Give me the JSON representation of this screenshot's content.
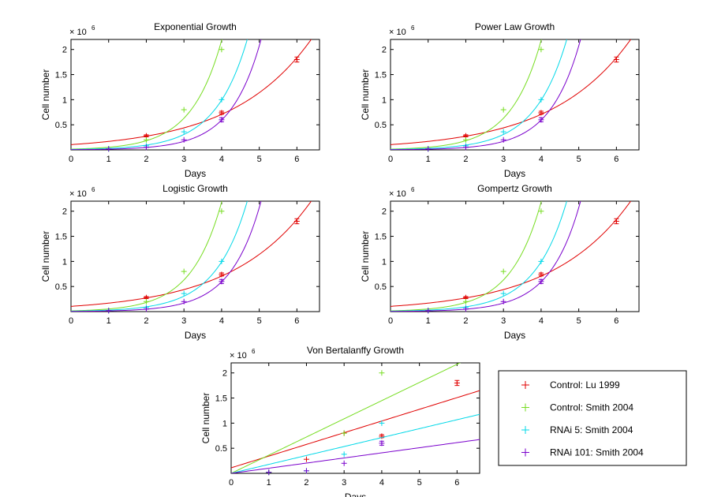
{
  "legend": {
    "entries": [
      {
        "label": "Control: Lu 1999",
        "color": "#e00000"
      },
      {
        "label": "Control: Smith 2004",
        "color": "#77dd22"
      },
      {
        "label": "RNAi 5: Smith 2004",
        "color": "#00d8e8"
      },
      {
        "label": "RNAi 101: Smith 2004",
        "color": "#7a00cc"
      }
    ]
  },
  "chart_data": [
    {
      "type": "scatter",
      "title": "Exponential Growth",
      "xlabel": "Days",
      "ylabel": "Cell number",
      "multiplier_base": "× 10",
      "multiplier_exp": "6",
      "xlim": [
        0,
        6.6
      ],
      "ylim": [
        0,
        2.2
      ],
      "xticks": [
        0,
        1,
        2,
        3,
        4,
        5,
        6
      ],
      "yticks": [
        0.5,
        1,
        1.5,
        2
      ],
      "series": [
        {
          "name": "Control: Lu 1999",
          "x": [
            2,
            4,
            6
          ],
          "y": [
            0.28,
            0.74,
            1.8
          ],
          "err": [
            0.02,
            0.03,
            0.05
          ],
          "fit": {
            "model": "exp",
            "a": 0.105,
            "r": 0.4769
          }
        },
        {
          "name": "Control: Smith 2004",
          "x": [
            1,
            2,
            3,
            4
          ],
          "y": [
            0.02,
            0.2,
            0.8,
            2.0
          ],
          "fit": {
            "model": "exp",
            "a": 0.0153,
            "r": 1.24
          }
        },
        {
          "name": "RNAi 5: Smith 2004",
          "x": [
            1,
            2,
            3,
            4
          ],
          "y": [
            0.02,
            0.08,
            0.36,
            1.0
          ],
          "fit": {
            "model": "exp",
            "a": 0.0092,
            "r": 1.17
          }
        },
        {
          "name": "RNAi 101: Smith 2004",
          "x": [
            1,
            2,
            3,
            4
          ],
          "y": [
            0.02,
            0.05,
            0.2,
            0.6
          ],
          "err": [
            0,
            0,
            0,
            0.04
          ],
          "fit": {
            "model": "exp",
            "a": 0.004,
            "r": 1.25
          }
        }
      ]
    },
    {
      "type": "scatter",
      "title": "Power Law Growth",
      "xlabel": "Days",
      "ylabel": "Cell number",
      "multiplier_base": "× 10",
      "multiplier_exp": "6",
      "xlim": [
        0,
        6.6
      ],
      "ylim": [
        0,
        2.2
      ],
      "xticks": [
        0,
        1,
        2,
        3,
        4,
        5,
        6
      ],
      "yticks": [
        0.5,
        1,
        1.5,
        2
      ],
      "series": [
        {
          "name": "Control: Lu 1999",
          "x": [
            2,
            4,
            6
          ],
          "y": [
            0.28,
            0.74,
            1.8
          ],
          "err": [
            0.02,
            0.03,
            0.05
          ],
          "fit": {
            "model": "exp",
            "a": 0.105,
            "r": 0.4769
          }
        },
        {
          "name": "Control: Smith 2004",
          "x": [
            1,
            2,
            3,
            4
          ],
          "y": [
            0.02,
            0.2,
            0.8,
            2.0
          ],
          "fit": {
            "model": "exp",
            "a": 0.0153,
            "r": 1.24
          }
        },
        {
          "name": "RNAi 5: Smith 2004",
          "x": [
            1,
            2,
            3,
            4
          ],
          "y": [
            0.02,
            0.08,
            0.36,
            1.0
          ],
          "fit": {
            "model": "exp",
            "a": 0.0092,
            "r": 1.17
          }
        },
        {
          "name": "RNAi 101: Smith 2004",
          "x": [
            1,
            2,
            3,
            4
          ],
          "y": [
            0.02,
            0.05,
            0.2,
            0.6
          ],
          "err": [
            0,
            0,
            0,
            0.04
          ],
          "fit": {
            "model": "exp",
            "a": 0.004,
            "r": 1.25
          }
        }
      ]
    },
    {
      "type": "scatter",
      "title": "Logistic Growth",
      "xlabel": "Days",
      "ylabel": "Cell number",
      "multiplier_base": "× 10",
      "multiplier_exp": "6",
      "xlim": [
        0,
        6.6
      ],
      "ylim": [
        0,
        2.2
      ],
      "xticks": [
        0,
        1,
        2,
        3,
        4,
        5,
        6
      ],
      "yticks": [
        0.5,
        1,
        1.5,
        2
      ],
      "series": [
        {
          "name": "Control: Lu 1999",
          "x": [
            2,
            4,
            6
          ],
          "y": [
            0.28,
            0.74,
            1.8
          ],
          "err": [
            0.02,
            0.03,
            0.05
          ],
          "fit": {
            "model": "exp",
            "a": 0.105,
            "r": 0.4769
          }
        },
        {
          "name": "Control: Smith 2004",
          "x": [
            1,
            2,
            3,
            4
          ],
          "y": [
            0.02,
            0.2,
            0.8,
            2.0
          ],
          "fit": {
            "model": "exp",
            "a": 0.0153,
            "r": 1.24
          }
        },
        {
          "name": "RNAi 5: Smith 2004",
          "x": [
            1,
            2,
            3,
            4
          ],
          "y": [
            0.02,
            0.08,
            0.36,
            1.0
          ],
          "fit": {
            "model": "exp",
            "a": 0.0092,
            "r": 1.17
          }
        },
        {
          "name": "RNAi 101: Smith 2004",
          "x": [
            1,
            2,
            3,
            4
          ],
          "y": [
            0.02,
            0.05,
            0.2,
            0.6
          ],
          "err": [
            0,
            0,
            0,
            0.04
          ],
          "fit": {
            "model": "exp",
            "a": 0.004,
            "r": 1.25
          }
        }
      ]
    },
    {
      "type": "scatter",
      "title": "Gompertz Growth",
      "xlabel": "Days",
      "ylabel": "Cell number",
      "multiplier_base": "× 10",
      "multiplier_exp": "6",
      "xlim": [
        0,
        6.6
      ],
      "ylim": [
        0,
        2.2
      ],
      "xticks": [
        0,
        1,
        2,
        3,
        4,
        5,
        6
      ],
      "yticks": [
        0.5,
        1,
        1.5,
        2
      ],
      "series": [
        {
          "name": "Control: Lu 1999",
          "x": [
            2,
            4,
            6
          ],
          "y": [
            0.28,
            0.74,
            1.8
          ],
          "err": [
            0.02,
            0.03,
            0.05
          ],
          "fit": {
            "model": "exp",
            "a": 0.105,
            "r": 0.4769
          }
        },
        {
          "name": "Control: Smith 2004",
          "x": [
            1,
            2,
            3,
            4
          ],
          "y": [
            0.02,
            0.2,
            0.8,
            2.0
          ],
          "fit": {
            "model": "exp",
            "a": 0.0153,
            "r": 1.24
          }
        },
        {
          "name": "RNAi 5: Smith 2004",
          "x": [
            1,
            2,
            3,
            4
          ],
          "y": [
            0.02,
            0.08,
            0.36,
            1.0
          ],
          "fit": {
            "model": "exp",
            "a": 0.0092,
            "r": 1.17
          }
        },
        {
          "name": "RNAi 101: Smith 2004",
          "x": [
            1,
            2,
            3,
            4
          ],
          "y": [
            0.02,
            0.05,
            0.2,
            0.6
          ],
          "err": [
            0,
            0,
            0,
            0.04
          ],
          "fit": {
            "model": "exp",
            "a": 0.004,
            "r": 1.25
          }
        }
      ]
    },
    {
      "type": "scatter",
      "title": "Von Bertalanffy Growth",
      "xlabel": "Days",
      "ylabel": "Cell number",
      "multiplier_base": "× 10",
      "multiplier_exp": "6",
      "xlim": [
        0,
        6.6
      ],
      "ylim": [
        0,
        2.2
      ],
      "xticks": [
        0,
        1,
        2,
        3,
        4,
        5,
        6
      ],
      "yticks": [
        0.5,
        1,
        1.5,
        2
      ],
      "series": [
        {
          "name": "Control: Lu 1999",
          "x": [
            1,
            2,
            3,
            4,
            6
          ],
          "y": [
            0.02,
            0.28,
            0.8,
            0.74,
            1.8
          ],
          "err": [
            0,
            0,
            0,
            0.03,
            0.05
          ],
          "fit": {
            "model": "lin",
            "a": 0.11,
            "b": 0.233
          }
        },
        {
          "name": "Control: Smith 2004",
          "x": [
            1,
            3,
            4
          ],
          "y": [
            0.02,
            0.8,
            2.0
          ],
          "fit": {
            "model": "lin",
            "a": 0.0,
            "b": 0.362
          }
        },
        {
          "name": "RNAi 5: Smith 2004",
          "x": [
            1,
            2,
            3,
            4
          ],
          "y": [
            0.02,
            0.05,
            0.38,
            1.0
          ],
          "fit": {
            "model": "lin",
            "a": 0.0,
            "b": 0.178
          }
        },
        {
          "name": "RNAi 101: Smith 2004",
          "x": [
            1,
            2,
            3,
            4
          ],
          "y": [
            0.02,
            0.05,
            0.2,
            0.6
          ],
          "err": [
            0,
            0,
            0,
            0.04
          ],
          "fit": {
            "model": "lin",
            "a": 0.0,
            "b": 0.102
          }
        }
      ]
    }
  ]
}
